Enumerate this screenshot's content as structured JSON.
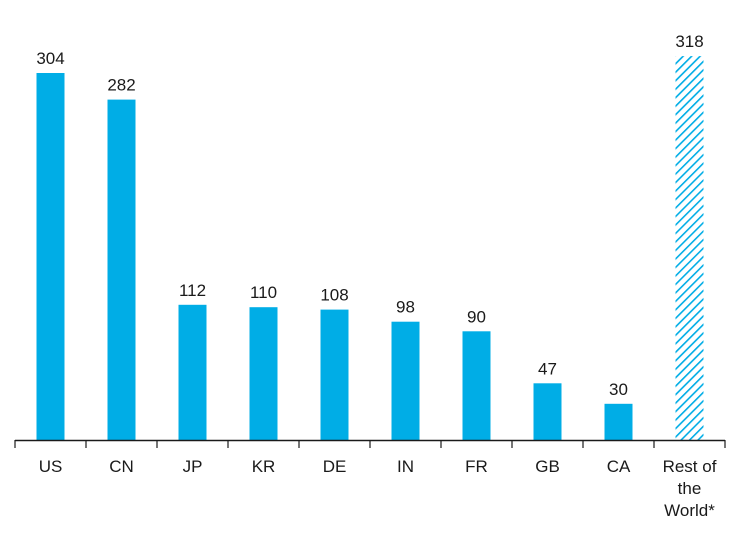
{
  "chart_data": {
    "type": "bar",
    "title": "",
    "xlabel": "",
    "ylabel": "",
    "categories": [
      "US",
      "CN",
      "JP",
      "KR",
      "DE",
      "IN",
      "FR",
      "GB",
      "CA",
      "Rest of the World*"
    ],
    "category_lines": [
      [
        "US"
      ],
      [
        "CN"
      ],
      [
        "JP"
      ],
      [
        "KR"
      ],
      [
        "DE"
      ],
      [
        "IN"
      ],
      [
        "FR"
      ],
      [
        "GB"
      ],
      [
        "CA"
      ],
      [
        "Rest of",
        "the",
        "World*"
      ]
    ],
    "values": [
      304,
      282,
      112,
      110,
      108,
      98,
      90,
      47,
      30,
      318
    ],
    "value_labels": [
      "304",
      "282",
      "112",
      "110",
      "108",
      "98",
      "90",
      "47",
      "30",
      "318"
    ],
    "hatched": [
      false,
      false,
      false,
      false,
      false,
      false,
      false,
      false,
      false,
      true
    ],
    "ylim": [
      0,
      330
    ],
    "grid": false,
    "legend": "none",
    "colors": {
      "bar": "#00ADE6",
      "axis": "#1a1a1a",
      "text": "#1a1a1a"
    }
  }
}
